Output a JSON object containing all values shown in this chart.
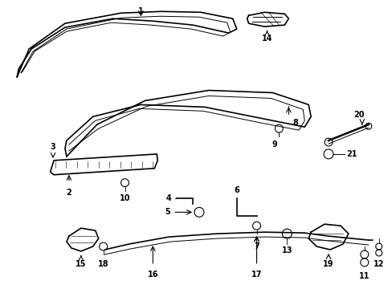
{
  "bg_color": "#ffffff",
  "line_color": "#000000",
  "lw_main": 1.2,
  "lw_thin": 0.7,
  "fontsize": 7
}
